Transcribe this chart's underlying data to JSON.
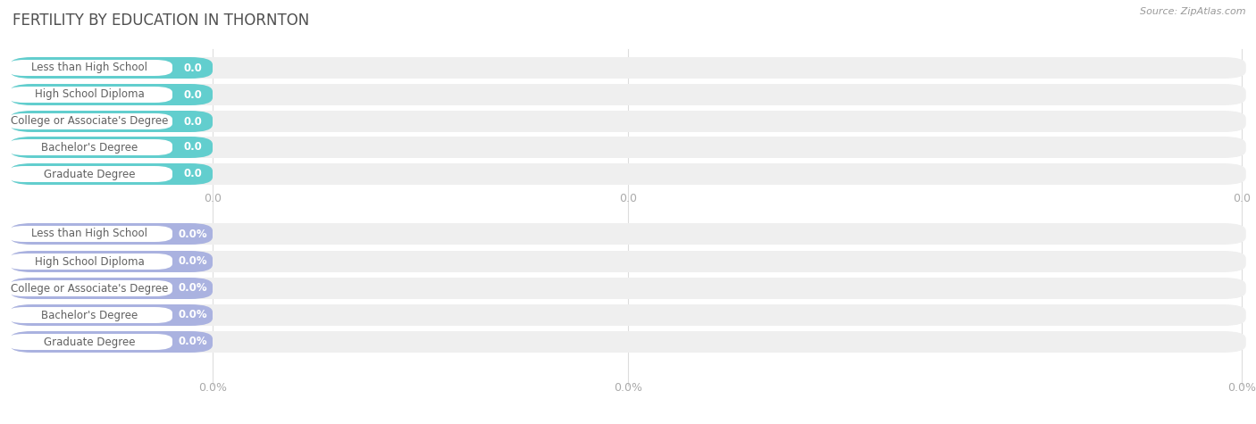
{
  "title": "FERTILITY BY EDUCATION IN THORNTON",
  "source": "Source: ZipAtlas.com",
  "categories": [
    "Less than High School",
    "High School Diploma",
    "College or Associate's Degree",
    "Bachelor's Degree",
    "Graduate Degree"
  ],
  "top_values": [
    0.0,
    0.0,
    0.0,
    0.0,
    0.0
  ],
  "bottom_values": [
    0.0,
    0.0,
    0.0,
    0.0,
    0.0
  ],
  "top_bar_color": "#62cece",
  "bottom_bar_color": "#aab2e0",
  "bg_bar_color": "#efefef",
  "title_color": "#505050",
  "tick_color": "#aaaaaa",
  "source_color": "#999999",
  "top_value_suffix": "",
  "bottom_value_suffix": "%",
  "bg_color": "#ffffff",
  "grid_color": "#dddddd",
  "label_text_color": "#606060",
  "value_text_color": "#ffffff"
}
